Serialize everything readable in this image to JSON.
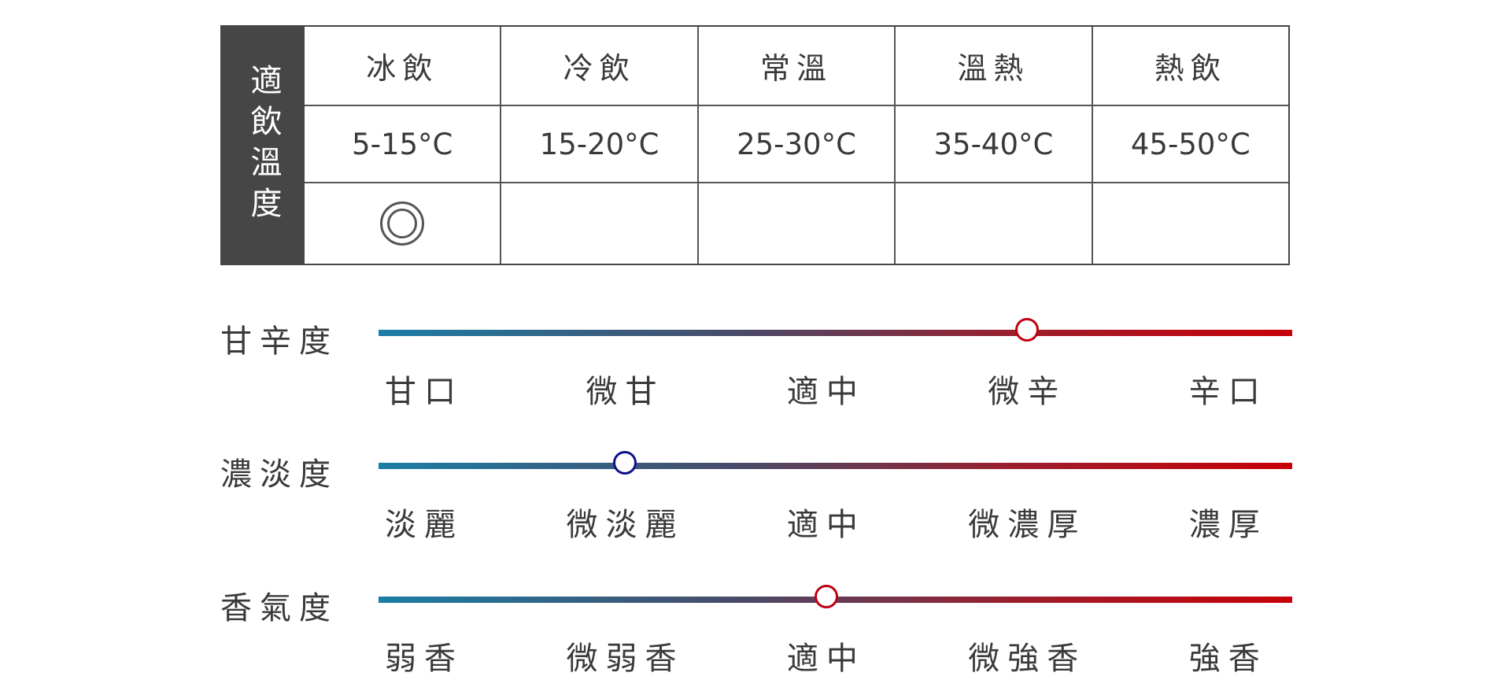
{
  "temperature_table": {
    "header": "適飲溫度",
    "columns": [
      {
        "name": "冰飲",
        "range": "5-15°C",
        "recommended": true
      },
      {
        "name": "冷飲",
        "range": "15-20°C",
        "recommended": false
      },
      {
        "name": "常溫",
        "range": "25-30°C",
        "recommended": false
      },
      {
        "name": "溫熱",
        "range": "35-40°C",
        "recommended": false
      },
      {
        "name": "熱飲",
        "range": "45-50°C",
        "recommended": false
      }
    ],
    "mark_icon": "double-circle-icon"
  },
  "sliders": [
    {
      "label": "甘辛度",
      "ticks": [
        "甘口",
        "微甘",
        "適中",
        "微辛",
        "辛口"
      ],
      "value_index": 3,
      "knob_color": "#c00010"
    },
    {
      "label": "濃淡度",
      "ticks": [
        "淡麗",
        "微淡麗",
        "適中",
        "微濃厚",
        "濃厚"
      ],
      "value_index": 1,
      "knob_color": "#10108a"
    },
    {
      "label": "香氣度",
      "ticks": [
        "弱香",
        "微弱香",
        "適中",
        "微強香",
        "強香"
      ],
      "value_index": 2,
      "knob_color": "#c00010"
    }
  ],
  "colors": {
    "gradient_start": "#1b7ea6",
    "gradient_end": "#c80008",
    "header_bg": "#464646"
  }
}
